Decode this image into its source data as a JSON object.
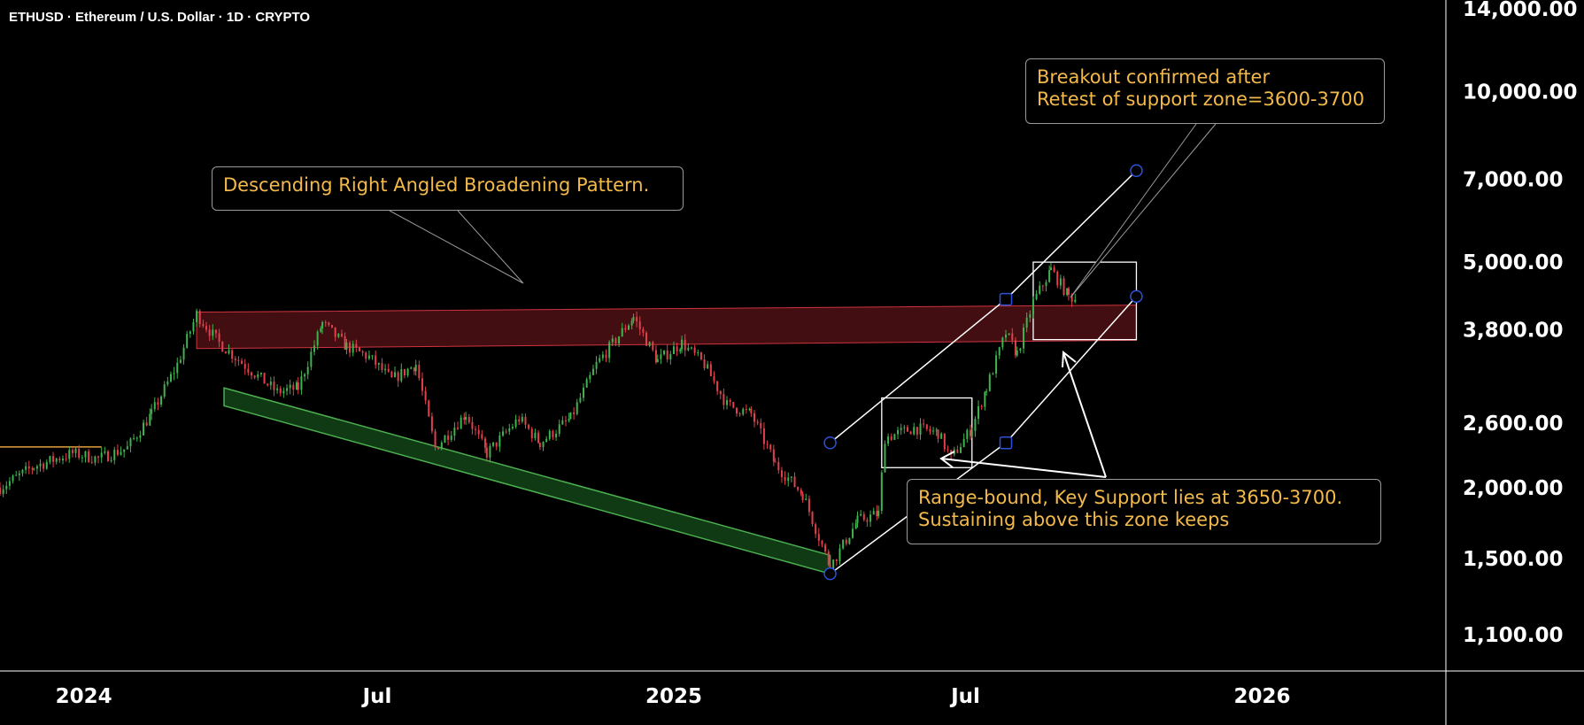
{
  "header": {
    "symbol_line": "ETHUSD · Ethereum / U.S. Dollar · 1D · CRYPTO"
  },
  "colors": {
    "background": "#000000",
    "up_candle": "#3fb34f",
    "down_candle": "#e0414b",
    "resistance_zone": "#4a0f14",
    "support_channel": "#0f3a14",
    "callout_text": "#f3b94a",
    "line_white": "#ffffff",
    "marker_blue": "#2d52d8"
  },
  "annotations": {
    "pattern_label": "Descending Right Angled Broadening Pattern.",
    "breakout_label": "Breakout confirmed after\nRetest of support zone=3600-3700",
    "range_label": "Range-bound, Key Support lies at 3650-3700.\nSustaining above this zone keeps"
  },
  "chart_data": {
    "type": "candlestick",
    "title": "ETHUSD · Ethereum / U.S. Dollar · 1D · CRYPTO",
    "y_scale": "log",
    "y_ticks": [
      "14,000.00",
      "10,000.00",
      "7,000.00",
      "5,000.00",
      "3,800.00",
      "2,600.00",
      "2,000.00",
      "1,500.00",
      "1,100.00"
    ],
    "y_tick_values": [
      14000,
      10000,
      7000,
      5000,
      3800,
      2600,
      2000,
      1500,
      1100
    ],
    "x_ticks": [
      "2024",
      "Jul",
      "2025",
      "Jul",
      "2026"
    ],
    "x_tick_dates": [
      "2024-01-01",
      "2024-07-01",
      "2025-01-01",
      "2025-07-01",
      "2026-01-01"
    ],
    "x_range": [
      "2023-11-10",
      "2026-04-25"
    ],
    "y_range": [
      950,
      14500
    ],
    "price_path": [
      [
        "2023-11-10",
        2000
      ],
      [
        "2023-12-01",
        2180
      ],
      [
        "2023-12-25",
        2300
      ],
      [
        "2024-01-10",
        2250
      ],
      [
        "2024-01-28",
        2350
      ],
      [
        "2024-02-12",
        2700
      ],
      [
        "2024-02-28",
        3300
      ],
      [
        "2024-03-11",
        4050
      ],
      [
        "2024-03-25",
        3600
      ],
      [
        "2024-04-12",
        3250
      ],
      [
        "2024-04-30",
        2950
      ],
      [
        "2024-05-13",
        3000
      ],
      [
        "2024-05-28",
        3900
      ],
      [
        "2024-06-12",
        3550
      ],
      [
        "2024-06-26",
        3400
      ],
      [
        "2024-07-10",
        3100
      ],
      [
        "2024-07-25",
        3300
      ],
      [
        "2024-08-06",
        2350
      ],
      [
        "2024-08-25",
        2700
      ],
      [
        "2024-09-07",
        2300
      ],
      [
        "2024-09-27",
        2650
      ],
      [
        "2024-10-10",
        2400
      ],
      [
        "2024-10-29",
        2650
      ],
      [
        "2024-11-14",
        3300
      ],
      [
        "2024-12-07",
        4000
      ],
      [
        "2024-12-22",
        3350
      ],
      [
        "2025-01-06",
        3600
      ],
      [
        "2025-01-20",
        3300
      ],
      [
        "2025-02-03",
        2800
      ],
      [
        "2025-02-18",
        2700
      ],
      [
        "2025-03-05",
        2200
      ],
      [
        "2025-03-22",
        1950
      ],
      [
        "2025-04-08",
        1450
      ],
      [
        "2025-04-25",
        1750
      ],
      [
        "2025-05-08",
        1800
      ],
      [
        "2025-05-12",
        2450
      ],
      [
        "2025-05-30",
        2550
      ],
      [
        "2025-06-14",
        2500
      ],
      [
        "2025-06-22",
        2250
      ],
      [
        "2025-07-05",
        2550
      ],
      [
        "2025-07-14",
        3000
      ],
      [
        "2025-07-26",
        3750
      ],
      [
        "2025-08-02",
        3450
      ],
      [
        "2025-08-12",
        4250
      ],
      [
        "2025-08-23",
        4850
      ],
      [
        "2025-09-03",
        4350
      ],
      [
        "2025-09-08",
        4300
      ]
    ],
    "resistance_zone": {
      "start": "2024-03-11",
      "end": "2025-10-15",
      "top_start": 4080,
      "top_end": 4200,
      "bottom_start": 3520,
      "bottom_end": 3640
    },
    "support_channel": {
      "upper_start": [
        "2024-03-28",
        3000
      ],
      "upper_end": [
        "2025-04-08",
        1520
      ],
      "lower_start": [
        "2024-03-28",
        2790
      ],
      "lower_end": [
        "2025-04-08",
        1410
      ]
    },
    "rising_channel": {
      "upper": [
        [
          "2025-04-08",
          2400
        ],
        [
          "2025-07-26",
          4300
        ],
        [
          "2025-10-15",
          7250
        ]
      ],
      "lower": [
        [
          "2025-04-08",
          1410
        ],
        [
          "2025-07-26",
          2400
        ],
        [
          "2025-10-15",
          4350
        ]
      ]
    },
    "range_box": {
      "start": "2025-05-10",
      "end": "2025-07-05",
      "top": 2880,
      "bottom": 2170
    },
    "breakout_box": {
      "start": "2025-08-12",
      "end": "2025-10-15",
      "top": 5000,
      "bottom": 3650
    },
    "prior_level": {
      "start": "2023-11-10",
      "end": "2024-01-12",
      "value": 2360
    }
  }
}
